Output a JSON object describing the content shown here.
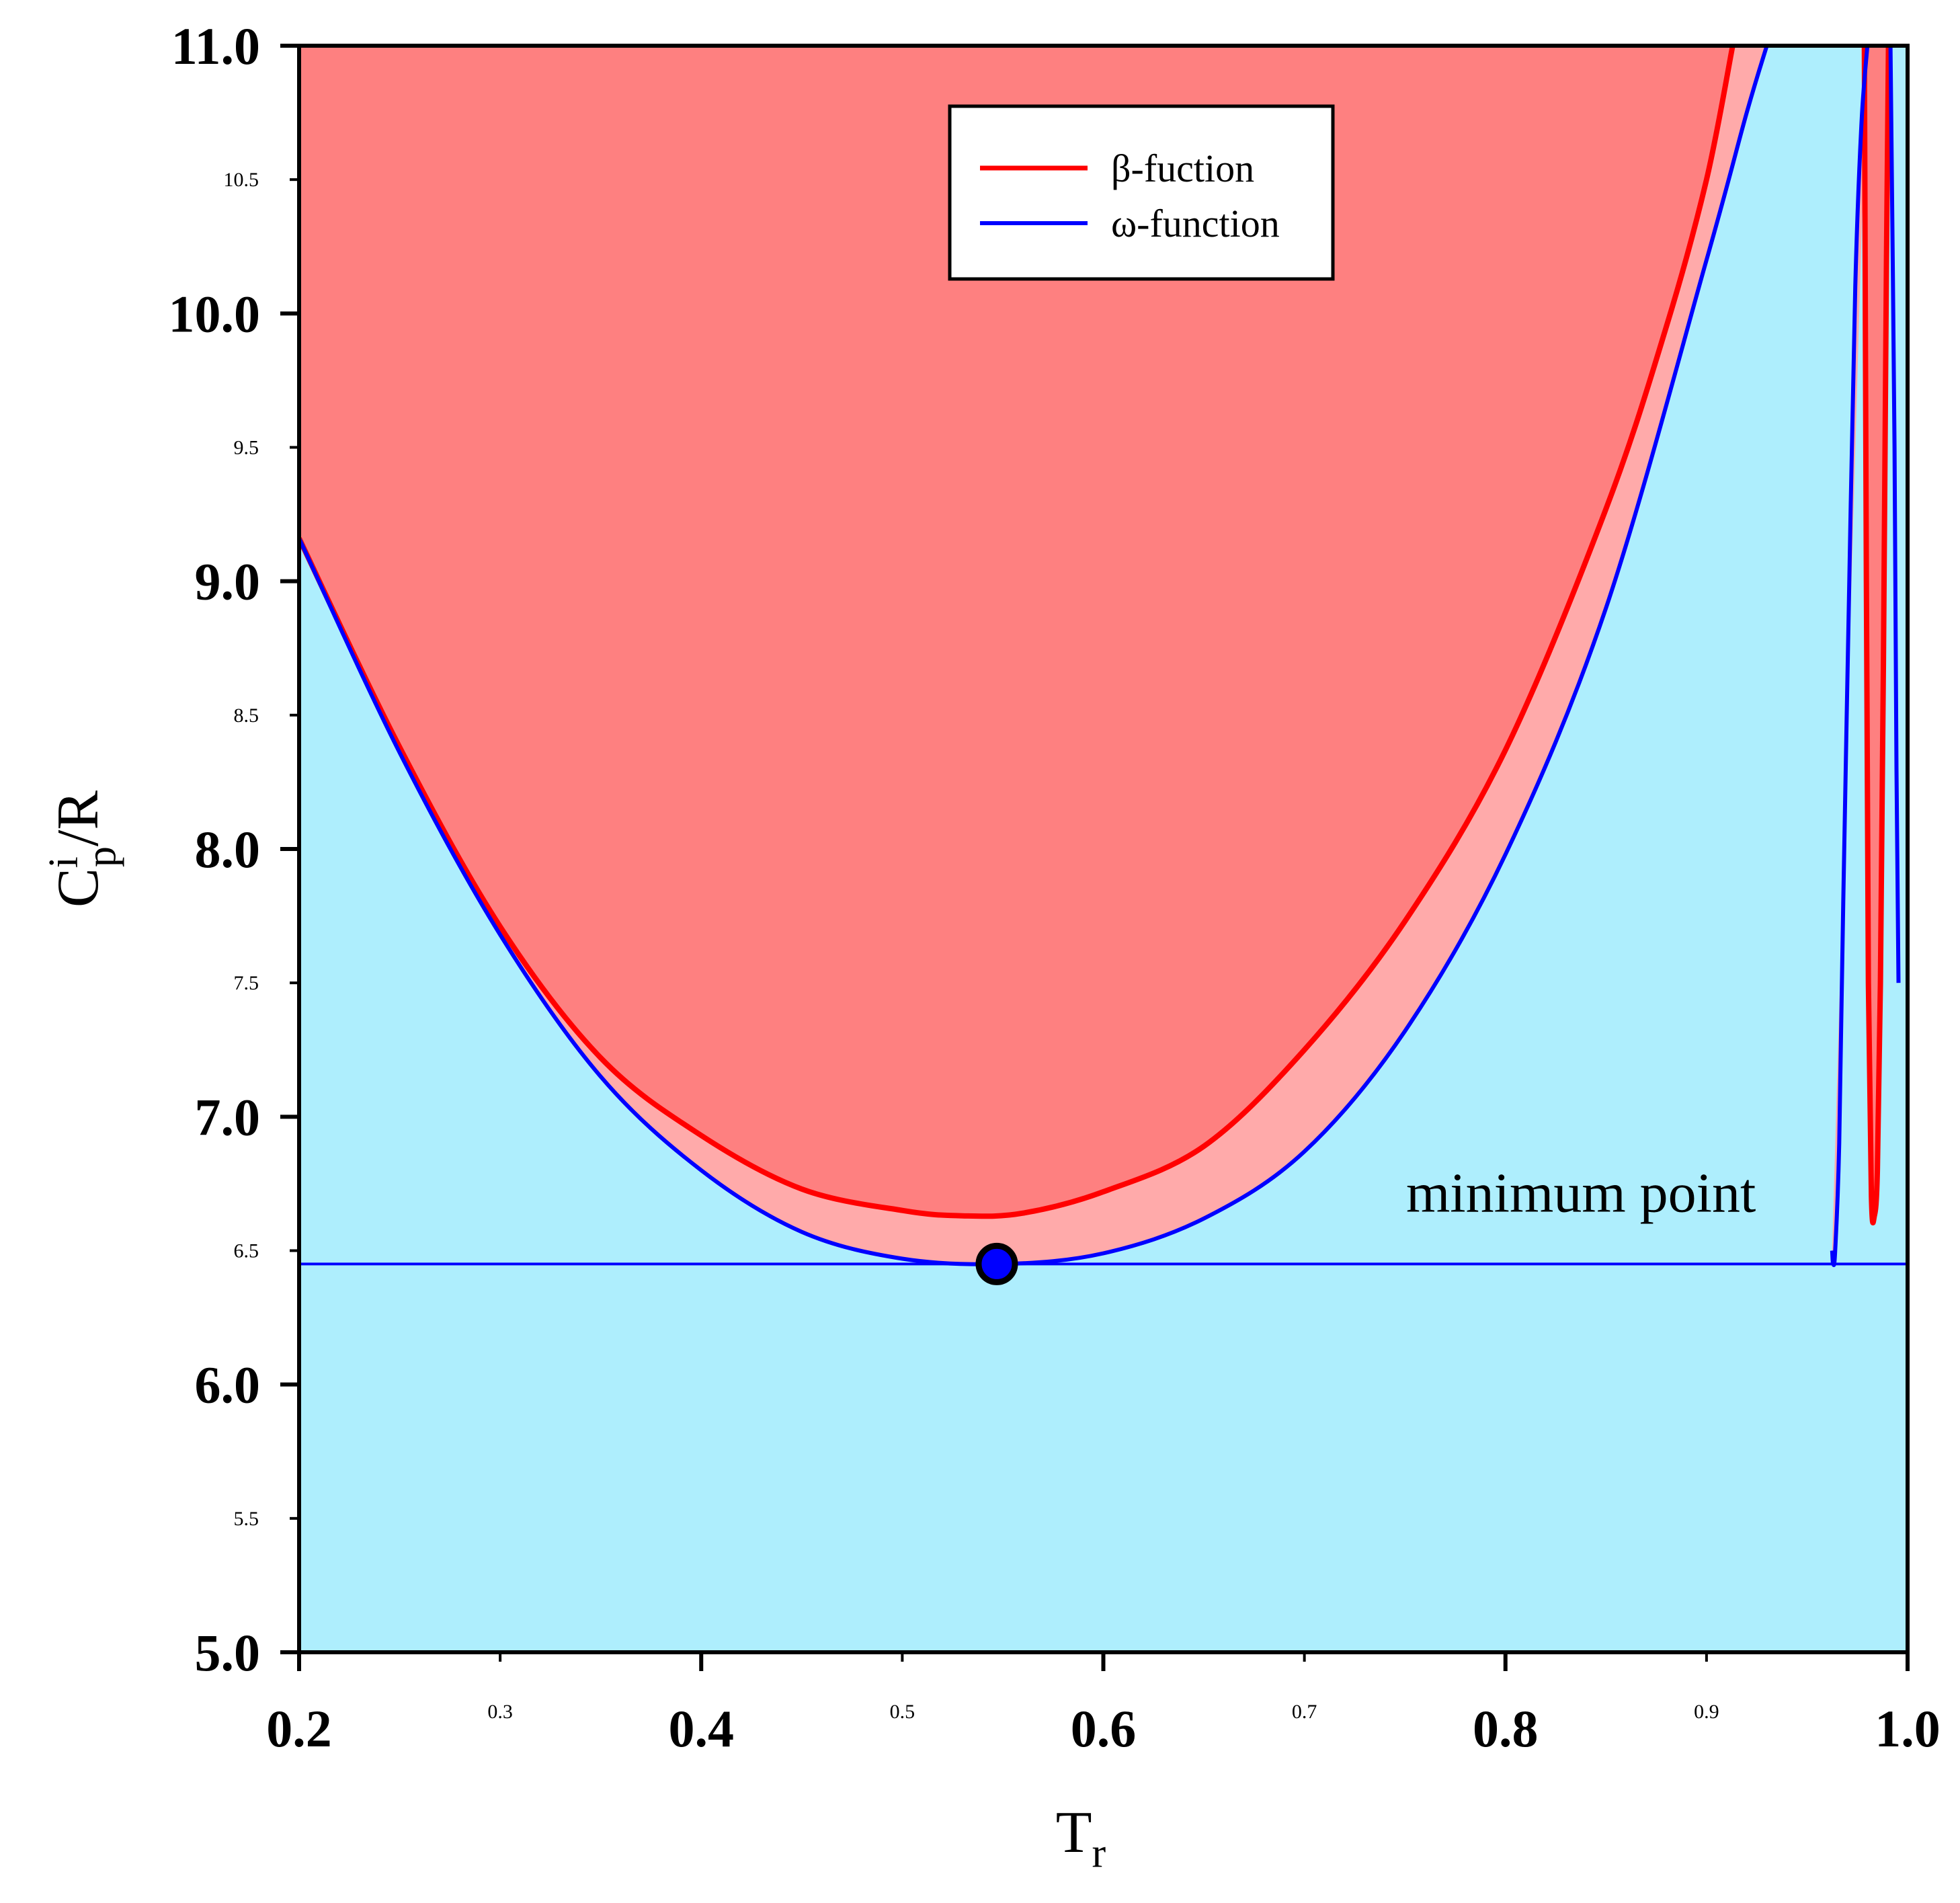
{
  "chart_data": {
    "type": "area",
    "xlabel": {
      "main": "T",
      "sub": "r"
    },
    "ylabel": {
      "main": "C",
      "sup": "i",
      "sub": "p",
      "rest": "/R"
    },
    "xlim": [
      0.2,
      1.0
    ],
    "ylim": [
      5.0,
      11.0
    ],
    "x_major_ticks": [
      "0.2",
      "0.4",
      "0.6",
      "0.8",
      "1.0"
    ],
    "x_minor_ticks": [
      "0.3",
      "0.5",
      "0.7",
      "0.9"
    ],
    "y_major_ticks": [
      "5.0",
      "6.0",
      "7.0",
      "8.0",
      "9.0",
      "10.0",
      "11.0"
    ],
    "y_minor_ticks": [
      "5.5",
      "6.5",
      "7.5",
      "8.5",
      "9.5",
      "10.5"
    ],
    "grid": false,
    "legend_position": "top-right",
    "series": [
      {
        "name": "β-fuction",
        "color": "#ff0000",
        "fill": "#fe8080",
        "branches": [
          {
            "x": [
              0.2,
              0.25,
              0.3,
              0.35,
              0.4,
              0.45,
              0.5,
              0.53,
              0.56,
              0.6,
              0.65,
              0.7,
              0.75,
              0.8,
              0.85,
              0.88,
              0.9,
              0.913
            ],
            "y": [
              9.16,
              8.38,
              7.71,
              7.22,
              6.93,
              6.73,
              6.65,
              6.63,
              6.64,
              6.72,
              6.89,
              7.25,
              7.73,
              8.37,
              9.27,
              9.95,
              10.5,
              11.0
            ]
          },
          {
            "x": [
              0.9785,
              0.9795,
              0.9805,
              0.982,
              0.9835,
              0.985,
              0.9865,
              0.988,
              0.9895,
              0.9905
            ],
            "y": [
              11.0,
              9.0,
              7.5,
              6.7,
              6.63,
              6.8,
              7.5,
              8.7,
              10.2,
              11.0
            ]
          }
        ]
      },
      {
        "name": "ω-function",
        "color": "#0000ff",
        "fill": "#ffaaaa",
        "branches": [
          {
            "x": [
              0.2,
              0.25,
              0.3,
              0.35,
              0.4,
              0.45,
              0.5,
              0.55,
              0.6,
              0.65,
              0.7,
              0.75,
              0.8,
              0.85,
              0.9,
              0.92,
              0.93
            ],
            "y": [
              9.16,
              8.36,
              7.68,
              7.15,
              6.8,
              6.57,
              6.47,
              6.45,
              6.49,
              6.62,
              6.87,
              7.32,
              7.98,
              8.9,
              10.2,
              10.75,
              11.0
            ]
          },
          {
            "x": [
              0.9625,
              0.963,
              0.964,
              0.966,
              0.968,
              0.971,
              0.974,
              0.977,
              0.98
            ],
            "y": [
              6.5,
              6.45,
              6.5,
              6.9,
              7.8,
              9.0,
              10.1,
              10.7,
              11.0
            ]
          },
          {
            "x": [
              0.9915,
              0.9935,
              0.9945,
              0.9955
            ],
            "y": [
              11.0,
              9.5,
              8.3,
              7.5
            ]
          }
        ]
      },
      {
        "name": "",
        "color": "#0000ff",
        "x": [
          0.2,
          1.0
        ],
        "y": [
          6.45,
          6.45
        ]
      }
    ],
    "background_fill": "#aeeefd",
    "marker": {
      "x": 0.547,
      "y": 6.45,
      "color": "#0000ff"
    },
    "annotations": [
      {
        "text": "minimum point",
        "x": 0.75,
        "y": 6.65
      }
    ]
  }
}
